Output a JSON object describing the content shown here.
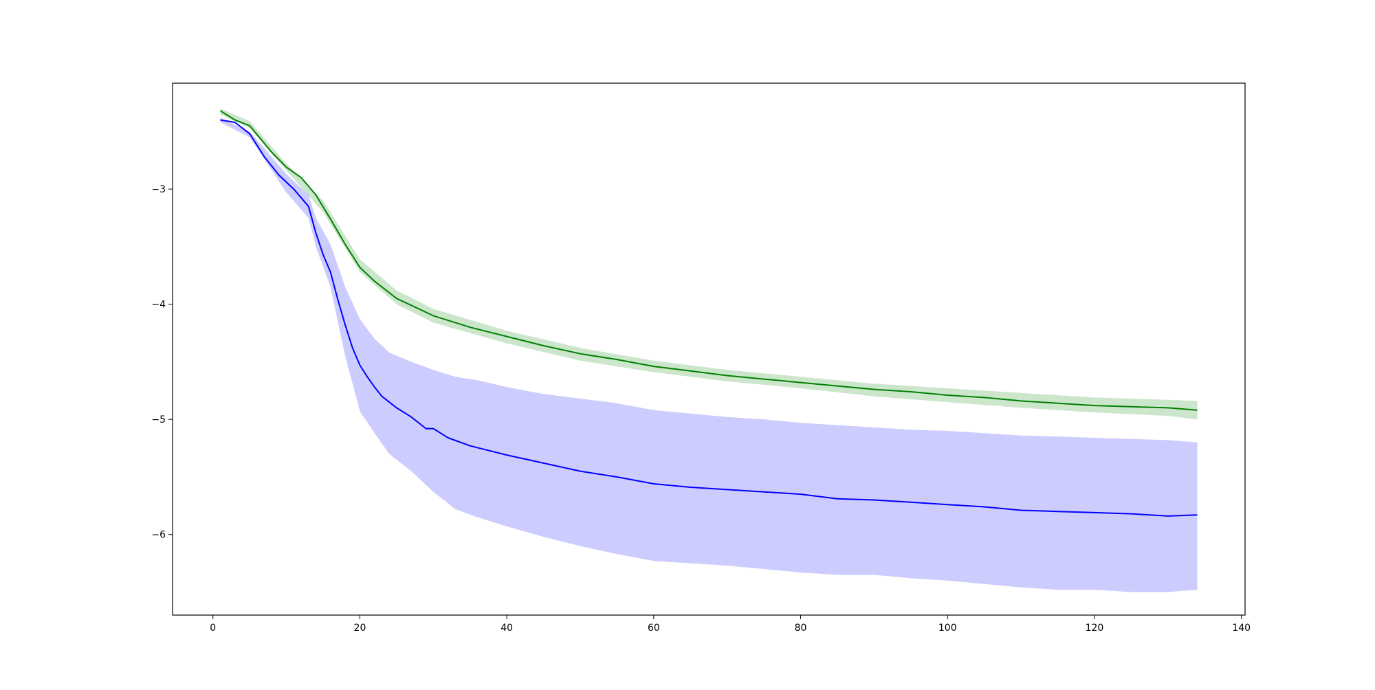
{
  "chart_data": {
    "type": "line",
    "title": "",
    "xlabel": "",
    "ylabel": "",
    "xlim": [
      -5.5,
      140.5
    ],
    "ylim": [
      -6.7,
      -2.08
    ],
    "xticks": [
      0,
      20,
      40,
      60,
      80,
      100,
      120,
      140
    ],
    "yticks": [
      -3,
      -4,
      -5,
      -6
    ],
    "xtick_labels": [
      "0",
      "20",
      "40",
      "60",
      "80",
      "100",
      "120",
      "140"
    ],
    "ytick_labels": [
      "−3",
      "−4",
      "−5",
      "−6"
    ],
    "grid": false,
    "legend": "none",
    "series": [
      {
        "color": "#008000",
        "band_color": "#008000",
        "band_opacity": 0.2,
        "points": [
          [
            1,
            -2.32
          ],
          [
            3,
            -2.4
          ],
          [
            5,
            -2.45
          ],
          [
            8,
            -2.68
          ],
          [
            10,
            -2.81
          ],
          [
            12,
            -2.9
          ],
          [
            14,
            -3.05
          ],
          [
            16,
            -3.26
          ],
          [
            18,
            -3.48
          ],
          [
            20,
            -3.68
          ],
          [
            22,
            -3.8
          ],
          [
            25,
            -3.95
          ],
          [
            30,
            -4.1
          ],
          [
            35,
            -4.2
          ],
          [
            40,
            -4.28
          ],
          [
            45,
            -4.36
          ],
          [
            50,
            -4.43
          ],
          [
            55,
            -4.48
          ],
          [
            60,
            -4.54
          ],
          [
            65,
            -4.58
          ],
          [
            70,
            -4.62
          ],
          [
            75,
            -4.65
          ],
          [
            80,
            -4.68
          ],
          [
            85,
            -4.71
          ],
          [
            90,
            -4.74
          ],
          [
            95,
            -4.76
          ],
          [
            100,
            -4.79
          ],
          [
            105,
            -4.81
          ],
          [
            110,
            -4.84
          ],
          [
            115,
            -4.86
          ],
          [
            120,
            -4.88
          ],
          [
            125,
            -4.89
          ],
          [
            130,
            -4.9
          ],
          [
            134,
            -4.92
          ]
        ],
        "band": [
          [
            1,
            -2.3,
            -2.35
          ],
          [
            5,
            -2.41,
            -2.47
          ],
          [
            10,
            -2.78,
            -2.84
          ],
          [
            15,
            -3.1,
            -3.2
          ],
          [
            20,
            -3.61,
            -3.72
          ],
          [
            25,
            -3.88,
            -4.0
          ],
          [
            30,
            -4.04,
            -4.16
          ],
          [
            40,
            -4.23,
            -4.34
          ],
          [
            50,
            -4.38,
            -4.49
          ],
          [
            60,
            -4.49,
            -4.59
          ],
          [
            70,
            -4.57,
            -4.67
          ],
          [
            80,
            -4.63,
            -4.73
          ],
          [
            90,
            -4.69,
            -4.8
          ],
          [
            100,
            -4.73,
            -4.85
          ],
          [
            110,
            -4.77,
            -4.9
          ],
          [
            120,
            -4.81,
            -4.94
          ],
          [
            130,
            -4.83,
            -4.97
          ],
          [
            134,
            -4.84,
            -5.0
          ]
        ]
      },
      {
        "color": "#0000ff",
        "band_color": "#0000ff",
        "band_opacity": 0.2,
        "points": [
          [
            1,
            -2.4
          ],
          [
            3,
            -2.42
          ],
          [
            5,
            -2.52
          ],
          [
            7,
            -2.72
          ],
          [
            9,
            -2.88
          ],
          [
            11,
            -3.0
          ],
          [
            13,
            -3.15
          ],
          [
            14,
            -3.38
          ],
          [
            15,
            -3.57
          ],
          [
            16,
            -3.72
          ],
          [
            17,
            -3.96
          ],
          [
            18,
            -4.18
          ],
          [
            19,
            -4.38
          ],
          [
            20,
            -4.53
          ],
          [
            21,
            -4.63
          ],
          [
            22,
            -4.72
          ],
          [
            23,
            -4.8
          ],
          [
            25,
            -4.9
          ],
          [
            27,
            -4.98
          ],
          [
            29,
            -5.08
          ],
          [
            30,
            -5.08
          ],
          [
            32,
            -5.16
          ],
          [
            35,
            -5.23
          ],
          [
            40,
            -5.31
          ],
          [
            45,
            -5.38
          ],
          [
            50,
            -5.45
          ],
          [
            55,
            -5.5
          ],
          [
            60,
            -5.56
          ],
          [
            65,
            -5.59
          ],
          [
            70,
            -5.61
          ],
          [
            75,
            -5.63
          ],
          [
            80,
            -5.65
          ],
          [
            85,
            -5.69
          ],
          [
            90,
            -5.7
          ],
          [
            95,
            -5.72
          ],
          [
            100,
            -5.74
          ],
          [
            105,
            -5.76
          ],
          [
            110,
            -5.79
          ],
          [
            115,
            -5.8
          ],
          [
            120,
            -5.81
          ],
          [
            125,
            -5.82
          ],
          [
            130,
            -5.84
          ],
          [
            134,
            -5.83
          ]
        ],
        "band": [
          [
            1,
            -2.38,
            -2.42
          ],
          [
            5,
            -2.5,
            -2.55
          ],
          [
            10,
            -2.87,
            -3.03
          ],
          [
            13,
            -3.05,
            -3.25
          ],
          [
            14,
            -3.25,
            -3.5
          ],
          [
            16,
            -3.48,
            -3.85
          ],
          [
            18,
            -3.85,
            -4.45
          ],
          [
            20,
            -4.13,
            -4.93
          ],
          [
            22,
            -4.3,
            -5.12
          ],
          [
            24,
            -4.42,
            -5.3
          ],
          [
            27,
            -4.5,
            -5.45
          ],
          [
            30,
            -4.57,
            -5.63
          ],
          [
            33,
            -4.63,
            -5.78
          ],
          [
            36,
            -4.66,
            -5.85
          ],
          [
            40,
            -4.72,
            -5.93
          ],
          [
            45,
            -4.78,
            -6.02
          ],
          [
            50,
            -4.82,
            -6.1
          ],
          [
            55,
            -4.86,
            -6.17
          ],
          [
            60,
            -4.92,
            -6.23
          ],
          [
            65,
            -4.95,
            -6.25
          ],
          [
            70,
            -4.98,
            -6.27
          ],
          [
            75,
            -5.0,
            -6.3
          ],
          [
            80,
            -5.03,
            -6.33
          ],
          [
            85,
            -5.05,
            -6.35
          ],
          [
            90,
            -5.07,
            -6.35
          ],
          [
            95,
            -5.09,
            -6.38
          ],
          [
            100,
            -5.1,
            -6.4
          ],
          [
            105,
            -5.12,
            -6.43
          ],
          [
            110,
            -5.14,
            -6.46
          ],
          [
            115,
            -5.15,
            -6.48
          ],
          [
            120,
            -5.16,
            -6.48
          ],
          [
            125,
            -5.17,
            -6.5
          ],
          [
            130,
            -5.18,
            -6.5
          ],
          [
            134,
            -5.2,
            -6.48
          ]
        ]
      }
    ]
  }
}
